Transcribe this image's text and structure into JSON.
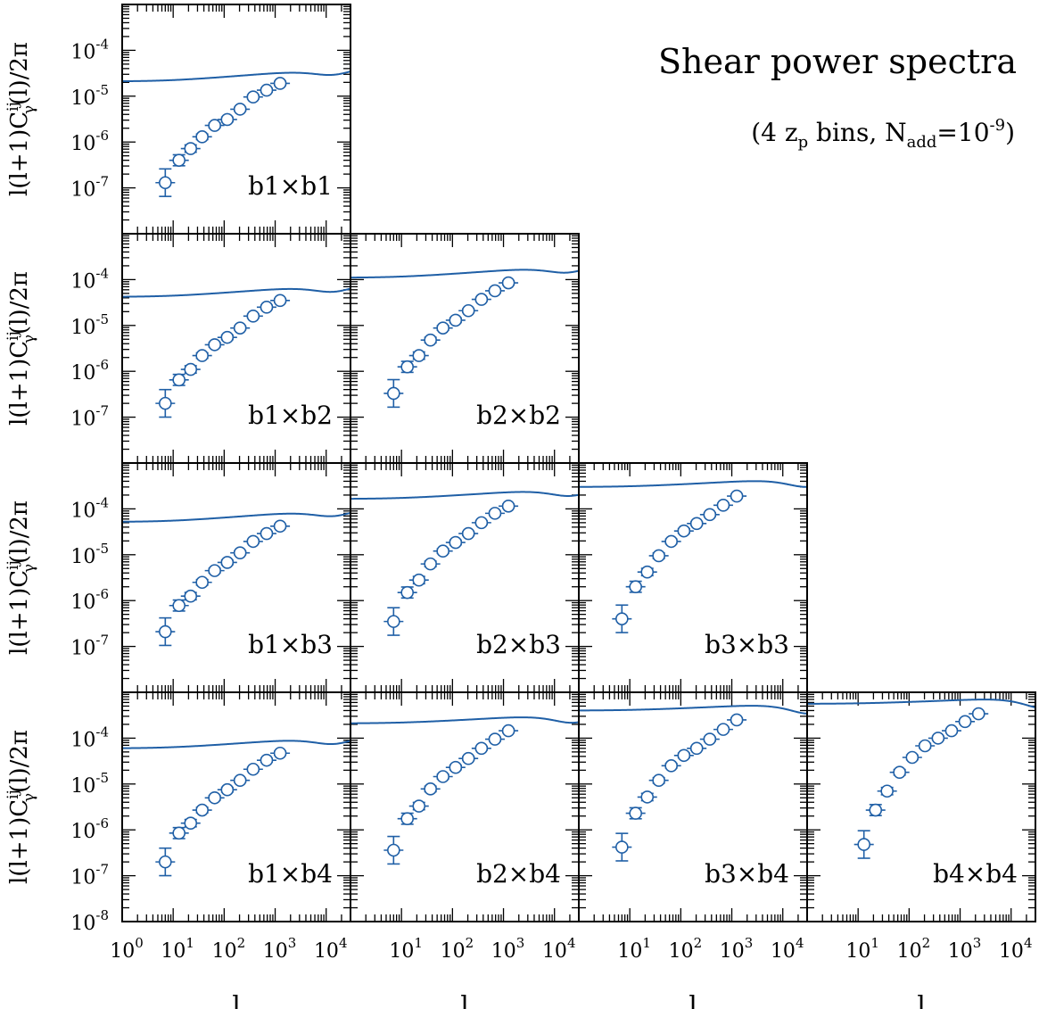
{
  "figure": {
    "title": "Shear power spectra",
    "subtitle": "(4 z_p bins, N_add=10^-9)",
    "subtitle_parts": {
      "open": "(4 z",
      "z_sub": "p",
      "mid": " bins, N",
      "n_sub": "add",
      "eq": "=10",
      "exp": "-9",
      "close": ")"
    },
    "ylabel_parts": {
      "pre": "l(l+1)C",
      "sup": "ij",
      "sub": "γ",
      "post": "(l)/2π"
    },
    "xlabel": "l",
    "colors": {
      "curve": "#1f5fa6",
      "axes": "#000000"
    }
  },
  "chart_data": {
    "type": "line",
    "xscale": "log",
    "yscale": "log",
    "xlim": [
      1,
      30000
    ],
    "ylim": [
      1e-08,
      0.001
    ],
    "x_ticks": [
      {
        "base": "10",
        "exp": "0"
      },
      {
        "base": "10",
        "exp": "1"
      },
      {
        "base": "10",
        "exp": "2"
      },
      {
        "base": "10",
        "exp": "3"
      },
      {
        "base": "10",
        "exp": "4"
      }
    ],
    "y_ticks": [
      {
        "base": "10",
        "exp": "-8"
      },
      {
        "base": "10",
        "exp": "-7"
      },
      {
        "base": "10",
        "exp": "-6"
      },
      {
        "base": "10",
        "exp": "-5"
      },
      {
        "base": "10",
        "exp": "-4"
      }
    ],
    "points_l": [
      7,
      13,
      22,
      37,
      65,
      115,
      205,
      370,
      680,
      1250,
      2300
    ],
    "panels": [
      {
        "row": 0,
        "col": 0,
        "label": "b1×b1",
        "model": {
          "A": 1.9e-07,
          "B": 2.1e-05,
          "lc": 7000
        },
        "points": [
          1.3e-07,
          4e-07,
          7.2e-07,
          1.3e-06,
          2.3e-06,
          3.1e-06,
          5.2e-06,
          9.6e-06,
          1.35e-05,
          1.9e-05,
          null
        ],
        "errors": [
          0.3,
          0.12,
          0.08,
          0.06,
          0.05,
          0.05,
          0.04,
          0.04,
          0.04,
          0.04,
          0
        ]
      },
      {
        "row": 1,
        "col": 0,
        "label": "b1×b2",
        "model": {
          "A": 3.5e-07,
          "B": 4.2e-05,
          "lc": 7000
        },
        "points": [
          2e-07,
          6.5e-07,
          1.1e-06,
          2.2e-06,
          3.8e-06,
          5.5e-06,
          8.8e-06,
          1.6e-05,
          2.5e-05,
          3.5e-05,
          null
        ],
        "errors": [
          0.3,
          0.12,
          0.08,
          0.06,
          0.05,
          0.05,
          0.04,
          0.04,
          0.04,
          0.04,
          0
        ]
      },
      {
        "row": 1,
        "col": 1,
        "label": "b2×b2",
        "model": {
          "A": 8.5e-07,
          "B": 0.00011,
          "lc": 9000
        },
        "points": [
          3.3e-07,
          1.25e-06,
          2.2e-06,
          4.8e-06,
          8.8e-06,
          1.3e-05,
          2.1e-05,
          3.7e-05,
          5.7e-05,
          8.5e-05,
          null
        ],
        "errors": [
          0.3,
          0.12,
          0.08,
          0.06,
          0.05,
          0.05,
          0.04,
          0.04,
          0.04,
          0.04,
          0
        ]
      },
      {
        "row": 2,
        "col": 0,
        "label": "b1×b3",
        "model": {
          "A": 4.5e-07,
          "B": 5.2e-05,
          "lc": 7000
        },
        "points": [
          2.1e-07,
          7.8e-07,
          1.25e-06,
          2.5e-06,
          4.5e-06,
          6.8e-06,
          1.1e-05,
          1.95e-05,
          2.9e-05,
          4.2e-05,
          null
        ],
        "errors": [
          0.3,
          0.12,
          0.08,
          0.06,
          0.05,
          0.05,
          0.04,
          0.04,
          0.04,
          0.04,
          0
        ]
      },
      {
        "row": 2,
        "col": 1,
        "label": "b2×b3",
        "model": {
          "A": 1.1e-06,
          "B": 0.000165,
          "lc": 10000
        },
        "points": [
          3.5e-07,
          1.5e-06,
          2.8e-06,
          6.3e-06,
          1.2e-05,
          1.85e-05,
          2.9e-05,
          5e-05,
          8e-05,
          0.000115,
          null
        ],
        "errors": [
          0.3,
          0.12,
          0.08,
          0.06,
          0.05,
          0.05,
          0.04,
          0.04,
          0.04,
          0.04,
          0
        ]
      },
      {
        "row": 2,
        "col": 2,
        "label": "b3×b3",
        "model": {
          "A": 1.55e-06,
          "B": 0.0003,
          "lc": 14000
        },
        "points": [
          4e-07,
          2e-06,
          4.2e-06,
          9.5e-06,
          1.95e-05,
          3.3e-05,
          4.8e-05,
          7.5e-05,
          0.00012,
          0.00019,
          null
        ],
        "errors": [
          0.3,
          0.12,
          0.08,
          0.06,
          0.05,
          0.05,
          0.04,
          0.04,
          0.04,
          0.04,
          0
        ]
      },
      {
        "row": 3,
        "col": 0,
        "label": "b1×b4",
        "model": {
          "A": 4.8e-07,
          "B": 6e-05,
          "lc": 7000
        },
        "points": [
          2e-07,
          8.5e-07,
          1.4e-06,
          2.7e-06,
          5e-06,
          7.5e-06,
          1.2e-05,
          2.1e-05,
          3.3e-05,
          4.7e-05,
          null
        ],
        "errors": [
          0.3,
          0.12,
          0.08,
          0.06,
          0.05,
          0.05,
          0.04,
          0.04,
          0.04,
          0.04,
          0
        ]
      },
      {
        "row": 3,
        "col": 1,
        "label": "b2×b4",
        "model": {
          "A": 1.2e-06,
          "B": 0.00021,
          "lc": 11000
        },
        "points": [
          3.6e-07,
          1.75e-06,
          3.3e-06,
          7.8e-06,
          1.45e-05,
          2.3e-05,
          3.6e-05,
          6e-05,
          9.5e-05,
          0.000145,
          null
        ],
        "errors": [
          0.3,
          0.12,
          0.08,
          0.06,
          0.05,
          0.05,
          0.04,
          0.04,
          0.04,
          0.04,
          0
        ]
      },
      {
        "row": 3,
        "col": 2,
        "label": "b3×b4",
        "model": {
          "A": 1.7e-06,
          "B": 0.0004,
          "lc": 15000
        },
        "points": [
          4.2e-07,
          2.3e-06,
          5.2e-06,
          1.2e-05,
          2.5e-05,
          4.2e-05,
          6e-05,
          9.5e-05,
          0.000155,
          0.00025,
          null
        ],
        "errors": [
          0.3,
          0.12,
          0.08,
          0.06,
          0.05,
          0.05,
          0.04,
          0.04,
          0.04,
          0.04,
          0
        ]
      },
      {
        "row": 3,
        "col": 3,
        "label": "b4×b4",
        "model": {
          "A": 2e-06,
          "B": 0.00056,
          "lc": 20000
        },
        "points": [
          null,
          4.8e-07,
          2.7e-06,
          7e-06,
          1.8e-05,
          3.8e-05,
          6.8e-05,
          0.0001,
          0.000145,
          0.00023,
          0.00034
        ],
        "errors": [
          0,
          0.3,
          0.12,
          0.08,
          0.06,
          0.05,
          0.05,
          0.04,
          0.04,
          0.04,
          0.04
        ]
      }
    ]
  }
}
